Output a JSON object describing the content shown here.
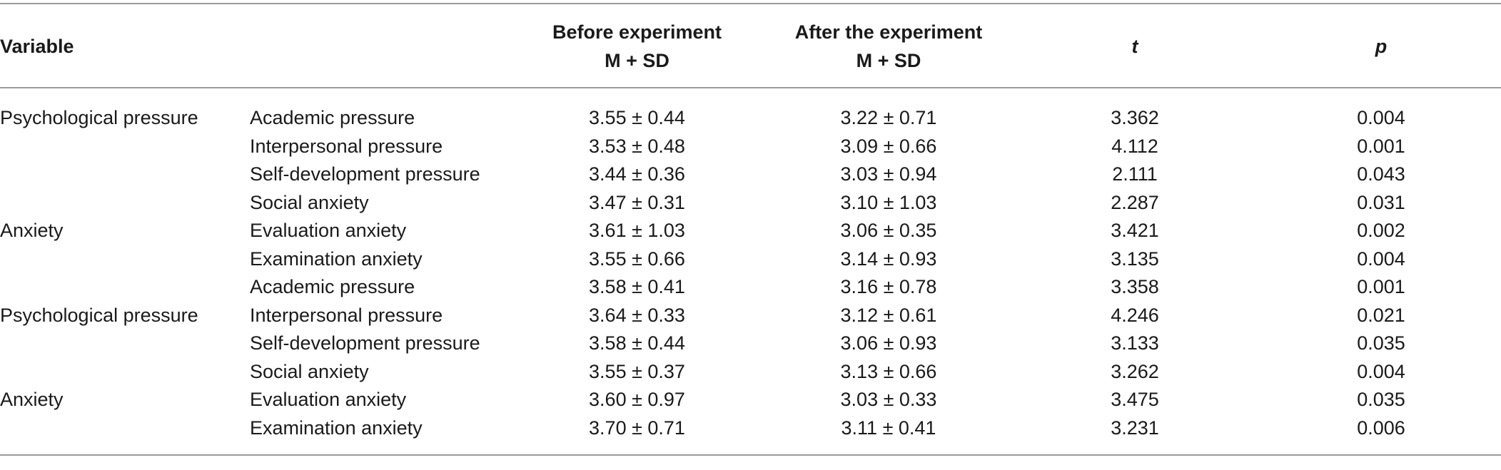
{
  "headers": {
    "variable": "Variable",
    "before_line1": "Before experiment",
    "before_line2": "M + SD",
    "after_line1": "After the experiment",
    "after_line2": "M + SD",
    "t": "t",
    "p": "p"
  },
  "rows": [
    {
      "variable": "Psychological pressure",
      "sub": "Academic pressure",
      "before": "3.55 ± 0.44",
      "after": "3.22 ± 0.71",
      "t": "3.362",
      "p": "0.004"
    },
    {
      "variable": "",
      "sub": "Interpersonal pressure",
      "before": "3.53 ± 0.48",
      "after": "3.09 ± 0.66",
      "t": "4.112",
      "p": "0.001"
    },
    {
      "variable": "",
      "sub": "Self-development pressure",
      "before": "3.44 ± 0.36",
      "after": "3.03 ± 0.94",
      "t": "2.111",
      "p": "0.043"
    },
    {
      "variable": "",
      "sub": "Social anxiety",
      "before": "3.47 ± 0.31",
      "after": "3.10 ± 1.03",
      "t": "2.287",
      "p": "0.031"
    },
    {
      "variable": "Anxiety",
      "sub": "Evaluation anxiety",
      "before": "3.61 ± 1.03",
      "after": "3.06 ± 0.35",
      "t": "3.421",
      "p": "0.002"
    },
    {
      "variable": "",
      "sub": "Examination anxiety",
      "before": "3.55 ± 0.66",
      "after": "3.14 ± 0.93",
      "t": "3.135",
      "p": "0.004"
    },
    {
      "variable": "",
      "sub": "Academic pressure",
      "before": "3.58 ± 0.41",
      "after": "3.16 ± 0.78",
      "t": "3.358",
      "p": "0.001"
    },
    {
      "variable": "Psychological pressure",
      "sub": "Interpersonal pressure",
      "before": "3.64 ± 0.33",
      "after": "3.12 ± 0.61",
      "t": "4.246",
      "p": "0.021"
    },
    {
      "variable": "",
      "sub": "Self-development pressure",
      "before": "3.58 ± 0.44",
      "after": "3.06 ± 0.93",
      "t": "3.133",
      "p": "0.035"
    },
    {
      "variable": "",
      "sub": "Social anxiety",
      "before": "3.55 ± 0.37",
      "after": "3.13 ± 0.66",
      "t": "3.262",
      "p": "0.004"
    },
    {
      "variable": "Anxiety",
      "sub": "Evaluation anxiety",
      "before": "3.60 ± 0.97",
      "after": "3.03 ± 0.33",
      "t": "3.475",
      "p": "0.035"
    },
    {
      "variable": "",
      "sub": "Examination anxiety",
      "before": "3.70 ± 0.71",
      "after": "3.11 ± 0.41",
      "t": "3.231",
      "p": "0.006"
    }
  ]
}
